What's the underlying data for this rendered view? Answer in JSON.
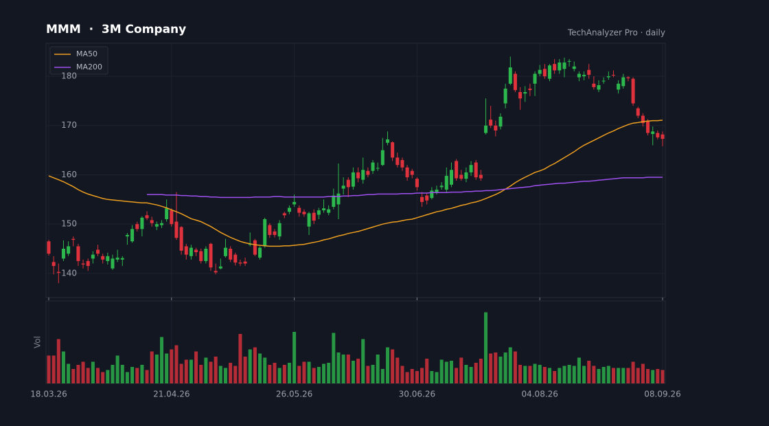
{
  "chart_data": {
    "type": "candlestick",
    "title": "MMM  ·  3M Company",
    "subtitle": "TechAnalyzer Pro · daily",
    "x": [
      "18.03.26",
      null,
      null,
      null,
      null,
      null,
      null,
      null,
      null,
      null,
      null,
      null,
      null,
      null,
      null,
      null,
      null,
      null,
      null,
      null,
      null,
      null,
      null,
      null,
      null,
      "21.04.26",
      null,
      null,
      null,
      null,
      null,
      null,
      null,
      null,
      null,
      null,
      null,
      null,
      null,
      null,
      null,
      null,
      null,
      null,
      null,
      null,
      null,
      null,
      null,
      null,
      "26.05.26",
      null,
      null,
      null,
      null,
      null,
      null,
      null,
      null,
      null,
      null,
      null,
      null,
      null,
      null,
      null,
      null,
      null,
      null,
      null,
      null,
      null,
      null,
      null,
      null,
      "30.06.26",
      null,
      null,
      null,
      null,
      null,
      null,
      null,
      null,
      null,
      null,
      null,
      null,
      null,
      null,
      null,
      null,
      null,
      null,
      null,
      null,
      null,
      null,
      null,
      null,
      "04.08.26",
      null,
      null,
      null,
      null,
      null,
      null,
      null,
      null,
      null,
      null,
      null,
      null,
      null,
      null,
      null,
      null,
      null,
      null,
      null,
      null,
      null,
      null,
      null,
      null,
      "08.09.26"
    ],
    "open": [
      146.5,
      142.3,
      140.3,
      143,
      144,
      147,
      145.5,
      142,
      142.5,
      143,
      144.8,
      143.5,
      142.5,
      141,
      142.8,
      142.8,
      147.5,
      146.5,
      150,
      149,
      151.8,
      150.8,
      149.5,
      149.8,
      151,
      152.8,
      150.5,
      149.4,
      145.5,
      143.5,
      144.8,
      144.5,
      142.5,
      146,
      140.5,
      141,
      143.5,
      145,
      143.8,
      142.2,
      142.4,
      145.8,
      146.7,
      143.2,
      145.5,
      149.8,
      148.5,
      147.5,
      152.2,
      152.5,
      154,
      153.3,
      152.5,
      149.5,
      152.3,
      151.9,
      152.8,
      152.3,
      153.5,
      154,
      157.2,
      159,
      157.6,
      160.5,
      159,
      160.8,
      160.8,
      161.3,
      162,
      166.5,
      166.6,
      163.5,
      163,
      161.5,
      160.8,
      159.2,
      155.5,
      155.8,
      155.3,
      156.5,
      157.5,
      157,
      158,
      162.8,
      160,
      159.2,
      160.5,
      162.5,
      160,
      168.5,
      171.2,
      170,
      169.8,
      174.5,
      178.5,
      180.5,
      176.8,
      176.5,
      177.5,
      178.5,
      180.5,
      181.5,
      179.5,
      182.5,
      181.2,
      181.5,
      183,
      181.5,
      179.8,
      180,
      181.3,
      178.5,
      177.3,
      179,
      179.8,
      180.3,
      177.3,
      178,
      179.8,
      179.5,
      173.5,
      172,
      171,
      168.3,
      168.5,
      168.2
    ],
    "high": [
      146.8,
      143.5,
      142,
      146.7,
      146.5,
      147.5,
      146,
      142.8,
      143,
      144.5,
      145.8,
      144,
      144.2,
      143.8,
      144.8,
      143.5,
      148.2,
      149.8,
      150.5,
      151.6,
      152.6,
      151.5,
      150.5,
      150.8,
      155,
      153.2,
      156.5,
      149.6,
      146,
      145.8,
      145.2,
      145,
      145.5,
      146.2,
      142,
      143,
      147,
      145.5,
      144.2,
      142.8,
      143.2,
      148.3,
      147,
      145.5,
      151.3,
      150.2,
      149,
      150.8,
      152.5,
      153.8,
      156,
      153.8,
      153,
      152.5,
      153,
      153.3,
      155,
      153.8,
      157.2,
      162.3,
      159.5,
      159.5,
      161.5,
      161.5,
      163.5,
      161.5,
      163,
      162.5,
      167.5,
      168.8,
      166.8,
      164.5,
      163.5,
      162,
      161.2,
      159.5,
      156.5,
      156.2,
      157.5,
      157.8,
      158.5,
      161.5,
      162.5,
      163.2,
      161,
      161.5,
      162.8,
      163,
      161,
      175.5,
      174,
      171,
      172.5,
      178.5,
      184,
      181,
      177.8,
      178,
      178.5,
      181,
      182.3,
      182.5,
      182.5,
      183.5,
      183.5,
      183.8,
      183.5,
      183,
      181,
      181,
      182.5,
      180,
      179.2,
      179.8,
      181,
      181.2,
      179.2,
      180.5,
      180,
      179.8,
      173.8,
      172.5,
      171.3,
      169.8,
      169,
      168.8
    ],
    "low": [
      143.6,
      139.8,
      138,
      142.5,
      143.5,
      145.5,
      141.5,
      141,
      140.5,
      142,
      143.5,
      142,
      141.8,
      140.7,
      142.3,
      141.5,
      145.8,
      146.2,
      148.5,
      147.5,
      150.8,
      149.5,
      148.8,
      149.2,
      150.5,
      149.5,
      146.8,
      143.8,
      142.8,
      142.8,
      143.5,
      142,
      142,
      140.5,
      139.8,
      140.8,
      143.2,
      142.3,
      141.6,
      141.5,
      141.5,
      145.5,
      143.5,
      142.8,
      145.2,
      147.2,
      147.3,
      146.8,
      151.2,
      152,
      153.5,
      151.5,
      151.5,
      147.8,
      150,
      151,
      152.3,
      151.8,
      153,
      151,
      156,
      155.5,
      157,
      158.5,
      158.2,
      159.5,
      160.2,
      160.8,
      161.8,
      166,
      162.8,
      161.5,
      160.8,
      158.8,
      159.3,
      156.8,
      153.5,
      154,
      155,
      156,
      157,
      156.5,
      157.5,
      158.8,
      158.8,
      158.5,
      159.8,
      159,
      158.8,
      168.2,
      169.5,
      167.8,
      169.2,
      173.5,
      178.2,
      176.8,
      173.2,
      174.8,
      176,
      176,
      180,
      179.5,
      179,
      180.5,
      180.5,
      179.8,
      182,
      181,
      179,
      179.2,
      179.5,
      177.3,
      176.8,
      178.5,
      179.3,
      179.8,
      176.5,
      177.5,
      179,
      174,
      171.5,
      169.8,
      168,
      166,
      167.2,
      165.8
    ],
    "close": [
      144,
      141.5,
      140.1,
      145,
      145.5,
      146.8,
      142.5,
      141.8,
      141.5,
      143.8,
      144,
      142.8,
      143.5,
      143,
      143.2,
      143.1,
      147.8,
      149,
      149,
      151.3,
      151.2,
      150.2,
      150,
      150.2,
      153.2,
      150,
      147.2,
      144.6,
      143.8,
      145.2,
      144.3,
      142.5,
      145,
      141.2,
      140.2,
      141.4,
      145.2,
      142.8,
      142.2,
      142,
      142,
      146,
      143.8,
      145.2,
      151,
      147.8,
      147.8,
      150.2,
      151.8,
      153.3,
      154.5,
      152.3,
      152,
      152.2,
      150.7,
      152.8,
      153.2,
      153,
      155.8,
      156.2,
      157.8,
      157.5,
      160.5,
      159.3,
      161,
      160,
      162.5,
      161.4,
      165,
      167.2,
      163.5,
      162,
      161.5,
      159.5,
      160,
      157.5,
      154.5,
      154.8,
      156.8,
      157,
      157.8,
      159.8,
      161,
      159.3,
      159.2,
      160.5,
      162,
      159.5,
      159.3,
      170,
      170,
      169,
      171.8,
      177.5,
      181.8,
      177.2,
      175.5,
      176.8,
      177.2,
      180.5,
      181.3,
      180,
      182.2,
      181.2,
      182.8,
      182.8,
      183.1,
      182,
      180.5,
      180.3,
      180.3,
      177.8,
      178.2,
      179.1,
      180,
      180.2,
      178.5,
      179.8,
      179.6,
      174.5,
      172,
      170.5,
      168.5,
      168.8,
      167.6,
      167.3
    ],
    "up_color": "#2db84d",
    "down_color": "#e0323c",
    "ylim": [
      135.1,
      186.7
    ],
    "yticks": [
      140,
      150,
      160,
      170,
      180
    ],
    "grid": true,
    "legend": "upper left",
    "series": [
      {
        "name": "MA50",
        "color": "#f0a020",
        "values": [
          159.8,
          159.4,
          159.0,
          158.6,
          158.1,
          157.6,
          157.0,
          156.5,
          156.1,
          155.8,
          155.5,
          155.2,
          155.0,
          154.9,
          154.8,
          154.7,
          154.6,
          154.5,
          154.4,
          154.3,
          154.3,
          154.1,
          153.9,
          153.6,
          153.3,
          152.9,
          152.5,
          152.1,
          151.6,
          151.1,
          150.8,
          150.5,
          150.0,
          149.5,
          148.9,
          148.3,
          147.8,
          147.3,
          146.9,
          146.5,
          146.2,
          146.0,
          145.8,
          145.7,
          145.6,
          145.5,
          145.5,
          145.5,
          145.6,
          145.6,
          145.7,
          145.8,
          145.9,
          146.1,
          146.3,
          146.5,
          146.8,
          147.0,
          147.3,
          147.6,
          147.8,
          148.1,
          148.3,
          148.5,
          148.8,
          149.1,
          149.4,
          149.7,
          150.0,
          150.2,
          150.4,
          150.5,
          150.7,
          150.9,
          151.0,
          151.3,
          151.6,
          151.9,
          152.2,
          152.5,
          152.7,
          153.0,
          153.2,
          153.5,
          153.8,
          154.0,
          154.3,
          154.5,
          154.8,
          155.2,
          155.6,
          156.0,
          156.5,
          157.1,
          157.7,
          158.4,
          159.0,
          159.5,
          160.0,
          160.5,
          160.8,
          161.2,
          161.8,
          162.3,
          162.9,
          163.5,
          164.1,
          164.7,
          165.4,
          166.0,
          166.5,
          167.0,
          167.5,
          168.0,
          168.5,
          168.9,
          169.4,
          169.8,
          170.2,
          170.5,
          170.6,
          170.8,
          170.9,
          171.0,
          171.0,
          171.1
        ]
      },
      {
        "name": "MA200",
        "color": "#a050f0",
        "values": [
          null,
          null,
          null,
          null,
          null,
          null,
          null,
          null,
          null,
          null,
          null,
          null,
          null,
          null,
          null,
          null,
          null,
          null,
          null,
          null,
          156.0,
          156.0,
          156.0,
          156.0,
          155.9,
          155.9,
          155.9,
          155.8,
          155.8,
          155.7,
          155.7,
          155.6,
          155.6,
          155.5,
          155.5,
          155.4,
          155.4,
          155.4,
          155.4,
          155.4,
          155.4,
          155.4,
          155.5,
          155.5,
          155.5,
          155.5,
          155.6,
          155.6,
          155.5,
          155.5,
          155.5,
          155.5,
          155.5,
          155.5,
          155.5,
          155.5,
          155.5,
          155.6,
          155.6,
          155.6,
          155.7,
          155.7,
          155.8,
          155.8,
          155.9,
          156.0,
          156.0,
          156.1,
          156.1,
          156.1,
          156.1,
          156.1,
          156.2,
          156.2,
          156.2,
          156.3,
          156.3,
          156.3,
          156.4,
          156.4,
          156.4,
          156.4,
          156.5,
          156.5,
          156.5,
          156.6,
          156.6,
          156.7,
          156.7,
          156.8,
          156.8,
          156.9,
          157.0,
          157.1,
          157.2,
          157.3,
          157.4,
          157.5,
          157.6,
          157.8,
          157.9,
          158.0,
          158.1,
          158.2,
          158.3,
          158.3,
          158.4,
          158.5,
          158.6,
          158.7,
          158.7,
          158.8,
          158.9,
          159.0,
          159.1,
          159.2,
          159.3,
          159.4,
          159.4,
          159.4,
          159.4,
          159.4,
          159.5,
          159.5,
          159.5,
          159.5
        ]
      }
    ],
    "volume": {
      "label": "Vol",
      "ylim": [
        0,
        8
      ],
      "values": [
        2.7,
        2.7,
        4.3,
        3.1,
        1.9,
        1.4,
        1.8,
        2.1,
        1.5,
        2.1,
        1.5,
        1.1,
        1.3,
        1.8,
        2.7,
        1.8,
        1.1,
        1.6,
        1.5,
        1.8,
        1.3,
        3.1,
        2.8,
        4.5,
        2.9,
        3.3,
        3.7,
        1.9,
        2.3,
        2.3,
        3.1,
        1.8,
        2.5,
        2.1,
        2.6,
        1.7,
        1.5,
        2.0,
        1.7,
        4.8,
        2.6,
        3.3,
        3.5,
        2.9,
        2.5,
        1.8,
        2.0,
        1.5,
        1.8,
        2.0,
        5.0,
        1.7,
        2.1,
        2.1,
        1.5,
        1.6,
        1.9,
        2.0,
        4.9,
        3.0,
        2.8,
        2.8,
        2.2,
        2.4,
        4.3,
        1.7,
        1.8,
        2.8,
        1.4,
        3.5,
        3.3,
        2.5,
        1.7,
        1.1,
        1.4,
        1.2,
        1.5,
        2.4,
        1.2,
        1.1,
        2.3,
        2.1,
        2.2,
        1.5,
        2.5,
        1.8,
        1.6,
        2.0,
        2.4,
        6.9,
        2.9,
        3.0,
        2.6,
        3.0,
        3.5,
        3.1,
        1.8,
        1.7,
        1.7,
        1.9,
        1.8,
        1.6,
        1.5,
        1.2,
        1.5,
        1.7,
        1.8,
        1.7,
        2.5,
        1.7,
        2.2,
        1.7,
        1.4,
        1.6,
        1.7,
        1.5,
        1.5,
        1.5,
        1.5,
        2.1,
        1.5,
        1.9,
        1.4,
        1.3,
        1.4,
        1.3
      ]
    }
  }
}
